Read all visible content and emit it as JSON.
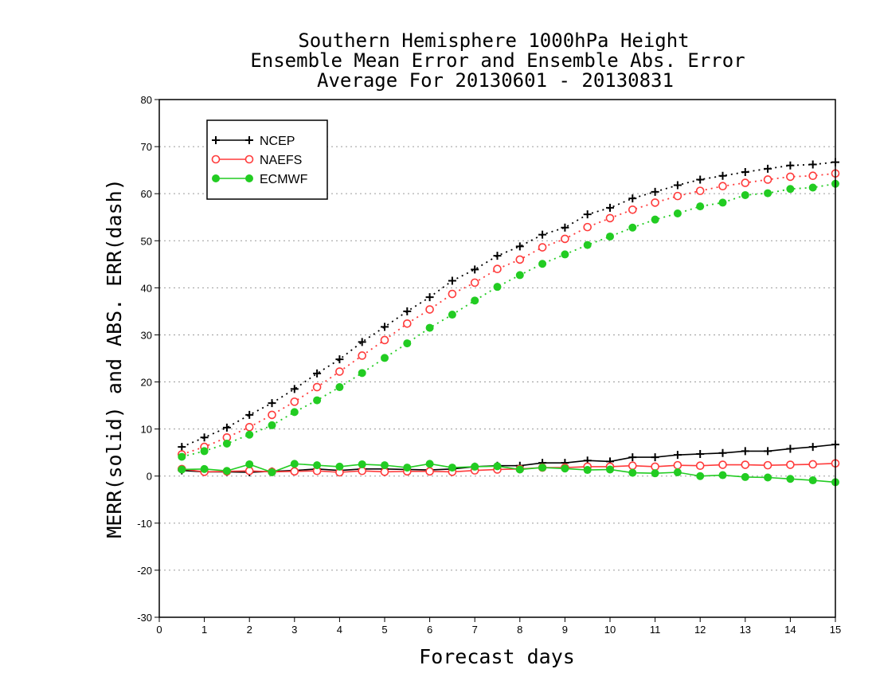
{
  "chart_data": {
    "type": "line",
    "title": [
      "Southern Hemisphere 1000hPa Height",
      "Ensemble Mean Error and Ensemble Abs. Error",
      "Average For 20130601 - 20130831"
    ],
    "xlabel": "Forecast days",
    "ylabel": "MERR(solid) and ABS. ERR(dash)",
    "xlim": [
      0,
      15
    ],
    "ylim": [
      -30,
      80
    ],
    "xticks": [
      0,
      1,
      2,
      3,
      4,
      5,
      6,
      7,
      8,
      9,
      10,
      11,
      12,
      13,
      14,
      15
    ],
    "yticks": [
      -30,
      -20,
      -10,
      0,
      10,
      20,
      30,
      40,
      50,
      60,
      70,
      80
    ],
    "grid": "horizontal dotted",
    "legend_position": "top-left",
    "x": [
      0.5,
      1,
      1.5,
      2,
      2.5,
      3,
      3.5,
      4,
      4.5,
      5,
      5.5,
      6,
      6.5,
      7,
      7.5,
      8,
      8.5,
      9,
      9.5,
      10,
      10.5,
      11,
      11.5,
      12,
      12.5,
      13,
      13.5,
      14,
      14.5,
      15
    ],
    "series": [
      {
        "name": "NCEP",
        "color": "#000000",
        "marker": "plus",
        "abs_err": [
          6.2,
          8.2,
          10.3,
          13.0,
          15.5,
          18.5,
          21.8,
          24.8,
          28.5,
          31.7,
          35.0,
          38.0,
          41.5,
          43.9,
          46.8,
          48.8,
          51.3,
          52.8,
          55.6,
          57.0,
          59.0,
          60.4,
          61.8,
          63.0,
          63.8,
          64.6,
          65.3,
          66.0,
          66.2,
          66.7
        ],
        "mean_err": [
          1.2,
          0.9,
          0.9,
          0.8,
          1.0,
          1.2,
          1.5,
          1.2,
          1.5,
          1.5,
          1.4,
          1.3,
          1.5,
          2.0,
          2.2,
          2.2,
          2.8,
          2.8,
          3.3,
          3.1,
          4.0,
          4.0,
          4.5,
          4.7,
          4.9,
          5.3,
          5.3,
          5.8,
          6.2,
          6.7
        ]
      },
      {
        "name": "NAEFS",
        "color": "#ff3b3b",
        "marker": "open-circle",
        "abs_err": [
          4.6,
          6.2,
          8.2,
          10.4,
          13.0,
          15.8,
          18.9,
          22.2,
          25.6,
          28.9,
          32.4,
          35.4,
          38.7,
          41.1,
          44.0,
          46.0,
          48.6,
          50.4,
          52.9,
          54.8,
          56.6,
          58.1,
          59.5,
          60.6,
          61.6,
          62.3,
          63.0,
          63.6,
          63.8,
          64.3
        ],
        "mean_err": [
          1.5,
          0.9,
          1.0,
          1.1,
          0.9,
          1.0,
          1.1,
          0.8,
          1.1,
          0.9,
          1.0,
          1.0,
          0.9,
          1.2,
          1.4,
          1.5,
          1.8,
          1.8,
          2.0,
          2.0,
          2.2,
          2.0,
          2.3,
          2.2,
          2.4,
          2.4,
          2.3,
          2.4,
          2.5,
          2.7
        ]
      },
      {
        "name": "ECMWF",
        "color": "#22cc22",
        "marker": "filled-circle",
        "abs_err": [
          4.1,
          5.3,
          6.9,
          8.8,
          10.8,
          13.6,
          16.1,
          18.9,
          21.9,
          25.1,
          28.2,
          31.5,
          34.3,
          37.3,
          40.2,
          42.7,
          45.1,
          47.1,
          49.1,
          50.9,
          52.8,
          54.5,
          55.8,
          57.3,
          58.1,
          59.7,
          60.1,
          61.0,
          61.3,
          62.1
        ],
        "mean_err": [
          1.4,
          1.5,
          1.1,
          2.5,
          0.8,
          2.6,
          2.3,
          2.0,
          2.5,
          2.3,
          1.8,
          2.6,
          1.8,
          2.0,
          2.1,
          1.4,
          1.8,
          1.6,
          1.3,
          1.4,
          0.7,
          0.6,
          0.8,
          0.0,
          0.2,
          -0.2,
          -0.3,
          -0.6,
          -0.9,
          -1.3
        ]
      }
    ]
  }
}
